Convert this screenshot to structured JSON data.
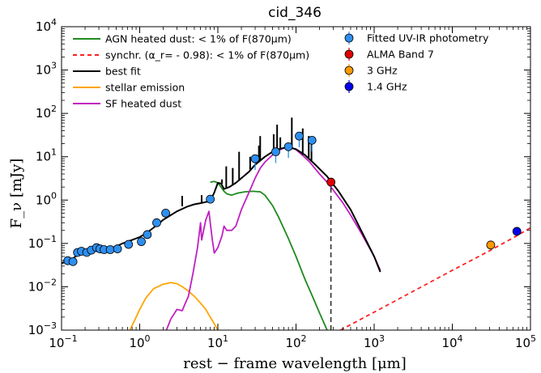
{
  "chart_data": {
    "type": "line",
    "title": "cid_346",
    "xlabel": "rest − frame wavelength [μm]",
    "ylabel": "F_ν [mJy]",
    "xscale": "log",
    "yscale": "log",
    "xlim": [
      0.1,
      100000
    ],
    "ylim": [
      0.001,
      10000
    ],
    "x_ticks": [
      0.1,
      1,
      10,
      100,
      1000,
      10000,
      100000
    ],
    "x_tick_labels": [
      {
        "base": "10",
        "exp": "−1"
      },
      {
        "base": "10",
        "exp": "0"
      },
      {
        "base": "10",
        "exp": "1"
      },
      {
        "base": "10",
        "exp": "2"
      },
      {
        "base": "10",
        "exp": "3"
      },
      {
        "base": "10",
        "exp": "4"
      },
      {
        "base": "10",
        "exp": "5"
      }
    ],
    "y_ticks": [
      0.001,
      0.01,
      0.1,
      1,
      10,
      100,
      1000,
      10000
    ],
    "y_tick_labels": [
      {
        "base": "10",
        "exp": "−3"
      },
      {
        "base": "10",
        "exp": "−2"
      },
      {
        "base": "10",
        "exp": "−1"
      },
      {
        "base": "10",
        "exp": "0"
      },
      {
        "base": "10",
        "exp": "1"
      },
      {
        "base": "10",
        "exp": "2"
      },
      {
        "base": "10",
        "exp": "3"
      },
      {
        "base": "10",
        "exp": "4"
      }
    ],
    "legend_left": [
      {
        "label": "AGN heated dust: < 1% of F(870μm)",
        "color": "#1f8a1f",
        "style": "solid"
      },
      {
        "label": "synchr. (α_r= - 0.98): < 1% of F(870μm)",
        "color": "#ff2020",
        "style": "dashed"
      },
      {
        "label": "best fit",
        "color": "#000000",
        "style": "solid"
      },
      {
        "label": "stellar emission",
        "color": "#ffa500",
        "style": "solid"
      },
      {
        "label": "SF heated dust",
        "color": "#c020c0",
        "style": "solid"
      }
    ],
    "legend_right": [
      {
        "label": "Fitted UV-IR photometry",
        "color": "#2e8fef"
      },
      {
        "label": "ALMA Band 7",
        "color": "#e00000"
      },
      {
        "label": "3 GHz",
        "color": "#ff9900"
      },
      {
        "label": "1.4 GHz",
        "color": "#0000ee"
      }
    ],
    "series": [
      {
        "name": "AGN heated dust",
        "color": "#1f8a1f",
        "x": [
          8,
          9,
          10,
          11,
          12,
          13,
          15,
          18,
          22,
          28,
          35,
          40,
          50,
          60,
          80,
          100,
          130,
          170,
          200,
          250
        ],
        "y": [
          2.6,
          2.7,
          2.5,
          2.0,
          1.6,
          1.4,
          1.3,
          1.45,
          1.55,
          1.6,
          1.55,
          1.3,
          0.75,
          0.4,
          0.13,
          0.05,
          0.015,
          0.005,
          0.0025,
          0.001
        ]
      },
      {
        "name": "synchr.",
        "color": "#ff2020",
        "dashed": true,
        "x": [
          370,
          1000,
          10000,
          31000,
          67000,
          100000
        ],
        "y": [
          0.001,
          0.0026,
          0.024,
          0.07,
          0.15,
          0.23
        ]
      },
      {
        "name": "best fit",
        "color": "#000000",
        "x": [
          0.1,
          0.13,
          0.15,
          0.2,
          0.25,
          0.3,
          0.4,
          0.5,
          0.6,
          0.8,
          1.0,
          1.2,
          1.5,
          2.0,
          2.5,
          3.0,
          4.0,
          5.0,
          6.0,
          7.0,
          8.0,
          9.0,
          10.0,
          11.0,
          12.0,
          14.0,
          17.0,
          20.0,
          25.0,
          30.0,
          40.0,
          50.0,
          60.0,
          70.0,
          80.0,
          100.0,
          130.0,
          170.0,
          250.0,
          350.0,
          500.0,
          700.0,
          1000.0,
          1200.0
        ],
        "y": [
          0.035,
          0.04,
          0.05,
          0.06,
          0.065,
          0.07,
          0.075,
          0.085,
          0.1,
          0.12,
          0.14,
          0.17,
          0.23,
          0.35,
          0.45,
          0.55,
          0.7,
          0.8,
          0.85,
          0.9,
          0.95,
          1.5,
          2.5,
          2.4,
          1.8,
          2.0,
          2.5,
          3.2,
          4.5,
          6.5,
          10.0,
          13.0,
          15.0,
          16.0,
          16.5,
          15.0,
          11.0,
          7.0,
          3.5,
          1.6,
          0.6,
          0.18,
          0.05,
          0.022
        ]
      },
      {
        "name": "stellar emission",
        "color": "#ffa500",
        "x": [
          0.75,
          0.9,
          1.0,
          1.2,
          1.5,
          2.0,
          2.5,
          3.0,
          3.5,
          4.0,
          5.0,
          6.0,
          7.0,
          8.0,
          9.0,
          10.0
        ],
        "y": [
          0.001,
          0.002,
          0.003,
          0.0055,
          0.009,
          0.0115,
          0.0125,
          0.0118,
          0.01,
          0.0085,
          0.006,
          0.0042,
          0.003,
          0.002,
          0.0014,
          0.001
        ]
      },
      {
        "name": "SF heated dust",
        "color": "#c020c0",
        "x": [
          2.2,
          2.5,
          3.0,
          3.5,
          3.8,
          4.2,
          4.8,
          5.5,
          6.0,
          6.2,
          6.5,
          7.0,
          7.7,
          8.0,
          8.5,
          9.0,
          10.0,
          11.3,
          12.0,
          13.0,
          15.0,
          17.0,
          20.0,
          25.0,
          30.0,
          35.0,
          40.0,
          50.0,
          60.0,
          70.0,
          80.0,
          90.0,
          100.0,
          120.0,
          150.0,
          200.0,
          250.0,
          300.0,
          400.0,
          500.0,
          700.0,
          1000.0,
          1200.0
        ],
        "y": [
          0.001,
          0.0018,
          0.003,
          0.0028,
          0.004,
          0.006,
          0.02,
          0.08,
          0.3,
          0.12,
          0.18,
          0.35,
          0.55,
          0.3,
          0.12,
          0.06,
          0.08,
          0.15,
          0.25,
          0.2,
          0.2,
          0.25,
          0.6,
          1.5,
          3.2,
          5.5,
          7.5,
          11.0,
          14.0,
          16.0,
          17.0,
          16.0,
          14.5,
          11.0,
          7.5,
          4.0,
          2.6,
          1.7,
          0.85,
          0.45,
          0.16,
          0.05,
          0.024
        ]
      }
    ],
    "spikes": [
      {
        "x": 3.5,
        "y0": 0.72,
        "y1": 1.25
      },
      {
        "x": 6.2,
        "y0": 0.85,
        "y1": 1.3
      },
      {
        "x": 7.7,
        "y0": 0.9,
        "y1": 1.2
      },
      {
        "x": 11.3,
        "y0": 2.4,
        "y1": 3.0
      },
      {
        "x": 12.8,
        "y0": 1.9,
        "y1": 6.0
      },
      {
        "x": 15.5,
        "y0": 2.2,
        "y1": 5.5
      },
      {
        "x": 18.7,
        "y0": 2.8,
        "y1": 13.0
      },
      {
        "x": 25.9,
        "y0": 5.0,
        "y1": 10.0
      },
      {
        "x": 33.5,
        "y0": 8.0,
        "y1": 18.0
      },
      {
        "x": 34.8,
        "y0": 8.0,
        "y1": 30.0
      },
      {
        "x": 51.8,
        "y0": 12.5,
        "y1": 33.0
      },
      {
        "x": 57.3,
        "y0": 14.0,
        "y1": 55.0
      },
      {
        "x": 63.0,
        "y0": 15.0,
        "y1": 28.0
      },
      {
        "x": 88.4,
        "y0": 16.0,
        "y1": 80.0
      },
      {
        "x": 121.9,
        "y0": 11.0,
        "y1": 45.0
      },
      {
        "x": 145.5,
        "y0": 9.5,
        "y1": 30.0
      },
      {
        "x": 157.7,
        "y0": 8.0,
        "y1": 26.0
      }
    ],
    "photometry": [
      {
        "x": 0.12,
        "y": 0.04
      },
      {
        "x": 0.14,
        "y": 0.038
      },
      {
        "x": 0.16,
        "y": 0.062
      },
      {
        "x": 0.18,
        "y": 0.066
      },
      {
        "x": 0.21,
        "y": 0.062
      },
      {
        "x": 0.24,
        "y": 0.07
      },
      {
        "x": 0.28,
        "y": 0.08
      },
      {
        "x": 0.31,
        "y": 0.075
      },
      {
        "x": 0.35,
        "y": 0.072
      },
      {
        "x": 0.42,
        "y": 0.072
      },
      {
        "x": 0.52,
        "y": 0.075
      },
      {
        "x": 0.72,
        "y": 0.095
      },
      {
        "x": 1.05,
        "y": 0.11
      },
      {
        "x": 1.25,
        "y": 0.16
      },
      {
        "x": 1.65,
        "y": 0.3
      },
      {
        "x": 2.15,
        "y": 0.5
      },
      {
        "x": 8.0,
        "y": 1.05
      },
      {
        "x": 30.0,
        "y": 9.0
      },
      {
        "x": 55.0,
        "y": 13.0
      },
      {
        "x": 80.0,
        "y": 17.0
      },
      {
        "x": 110.0,
        "y": 30.0
      },
      {
        "x": 160.0,
        "y": 24.0
      }
    ],
    "alma": {
      "x": 280,
      "y": 2.6
    },
    "ghz3": {
      "x": 31000,
      "y": 0.092
    },
    "ghz14": {
      "x": 67000,
      "y": 0.19
    },
    "alma_dashed_line": {
      "x": 280,
      "y_from": 0.001,
      "y_to": 2.6
    }
  }
}
